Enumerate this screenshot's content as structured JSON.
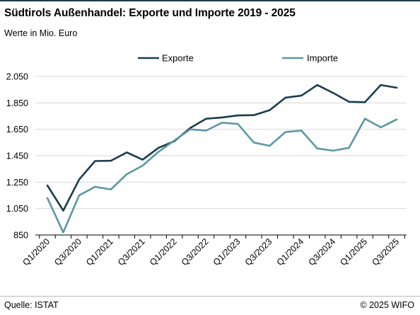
{
  "title": "Südtirols Außenhandel: Exporte und Importe 2019 - 2025",
  "subtitle": "Werte in Mio. Euro",
  "footer": {
    "source": "Quelle: ISTAT",
    "copyright": "© 2025  WIFO"
  },
  "colors": {
    "exporte": "#1a3d4f",
    "importe": "#5b97a6",
    "grid": "#d9d9d9",
    "axis": "#000000"
  },
  "chart_data": {
    "type": "line",
    "x": [
      "Q1/2020",
      "Q2/2020",
      "Q3/2020",
      "Q4/2020",
      "Q1/2021",
      "Q2/2021",
      "Q3/2021",
      "Q4/2021",
      "Q1/2022",
      "Q2/2022",
      "Q3/2022",
      "Q4/2022",
      "Q1/2023",
      "Q2/2023",
      "Q3/2023",
      "Q4/2023",
      "Q1/2024",
      "Q2/2024",
      "Q3/2024",
      "Q4/2024",
      "Q1/2025",
      "Q2/2025",
      "Q3/2025"
    ],
    "xticklabels": [
      "Q1/2020",
      "Q3/2020",
      "Q1/2021",
      "Q3/2021",
      "Q1/2022",
      "Q3/2022",
      "Q1/2023",
      "Q3/2023",
      "Q1/2024",
      "Q3/2024",
      "Q1/2025",
      "Q3/2025"
    ],
    "series": [
      {
        "name": "Exporte",
        "values": [
          1225,
          1035,
          1270,
          1410,
          1412,
          1475,
          1420,
          1510,
          1560,
          1660,
          1730,
          1740,
          1755,
          1757,
          1795,
          1890,
          1905,
          1985,
          1925,
          1858,
          1855,
          1985,
          1965
        ]
      },
      {
        "name": "Importe",
        "values": [
          1130,
          870,
          1150,
          1215,
          1195,
          1310,
          1375,
          1480,
          1565,
          1650,
          1640,
          1700,
          1690,
          1550,
          1525,
          1630,
          1640,
          1505,
          1488,
          1510,
          1730,
          1665,
          1725
        ]
      }
    ],
    "yticks": [
      "2.050",
      "1.850",
      "1.650",
      "1.450",
      "1.250",
      "1.050",
      "850"
    ],
    "ylim": [
      850,
      2050
    ],
    "legend": "top",
    "grid": true
  }
}
